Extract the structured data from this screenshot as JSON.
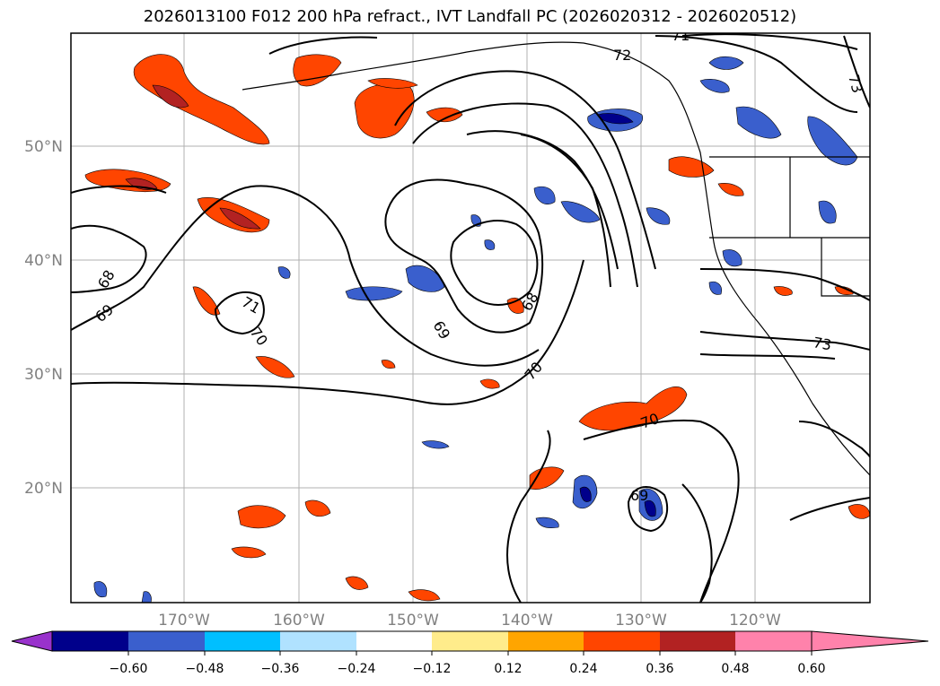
{
  "title": "2026013100 F012 200 hPa refract., IVT Landfall PC (2026020312 - 2026020512)",
  "lat_labels": [
    "50°N",
    "40°N",
    "30°N",
    "20°N"
  ],
  "lon_labels": [
    "170°W",
    "160°W",
    "150°W",
    "140°W",
    "130°W",
    "120°W"
  ],
  "contour_labels": [
    "72",
    "71",
    "73",
    "68",
    "69",
    "70",
    "68",
    "69",
    "70",
    "70",
    "73",
    "69",
    "71"
  ],
  "colorbar": {
    "colors": [
      "#9932cc",
      "#00008b",
      "#3a5fcd",
      "#00bfff",
      "#b0e2ff",
      "#ffffff",
      "#ffec8b",
      "#ffa500",
      "#ff4500",
      "#b22222",
      "#ff82ab"
    ],
    "tick_labels": [
      "−0.60",
      "−0.48",
      "−0.36",
      "−0.24",
      "−0.12",
      "0.12",
      "0.24",
      "0.36",
      "0.48",
      "0.60"
    ]
  }
}
